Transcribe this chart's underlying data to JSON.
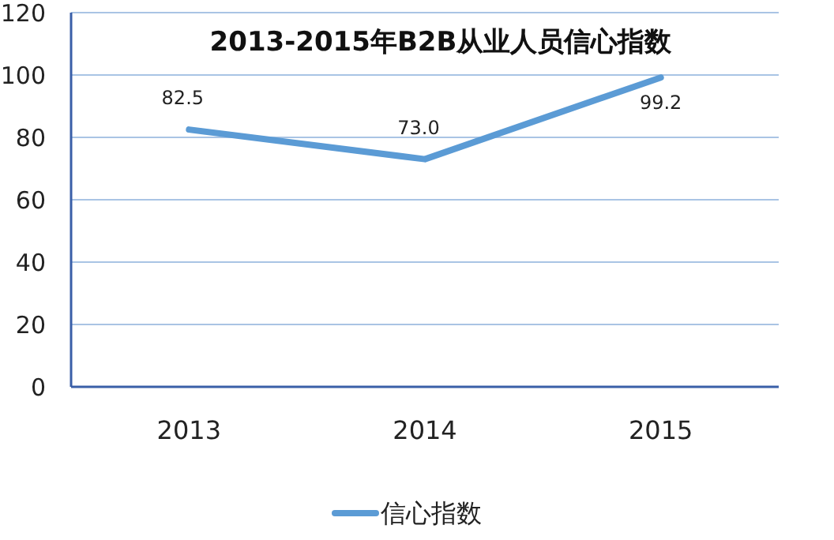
{
  "chart_data": {
    "type": "line",
    "title": "2013-2015年B2B从业人员信心指数",
    "categories": [
      "2013",
      "2014",
      "2015"
    ],
    "series": [
      {
        "name": "信心指数",
        "color": "#5b9bd5",
        "values": [
          82.5,
          73.0,
          99.2
        ]
      }
    ],
    "value_labels": [
      "82.5",
      "73.0",
      "99.2"
    ],
    "ylim": [
      0,
      120
    ],
    "yticks": [
      0,
      20,
      40,
      60,
      80,
      100,
      120
    ],
    "grid": "y",
    "legend": "bottom",
    "marker": "none"
  }
}
